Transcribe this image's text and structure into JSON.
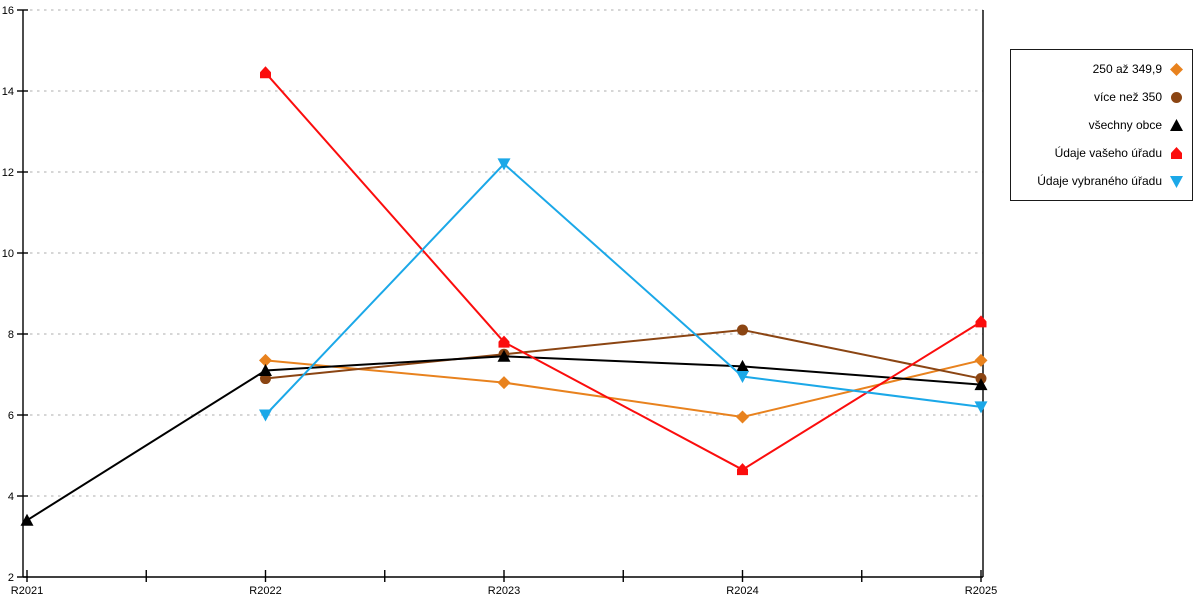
{
  "chart_data": {
    "type": "line",
    "title": "",
    "xlabel": "",
    "ylabel": "",
    "x": [
      "R2021",
      "R2022",
      "R2023",
      "R2024",
      "R2025"
    ],
    "ylim": [
      2,
      16
    ],
    "yticks": [
      2,
      4,
      6,
      8,
      10,
      12,
      14,
      16
    ],
    "grid": "horizontal-dashed",
    "grid_color": "#bdbdbd",
    "axis_color": "#000000",
    "legend_position": "outside-right",
    "series": [
      {
        "name": "250 až 349,9",
        "color": "#E8821E",
        "marker": "diamond",
        "values": [
          null,
          7.35,
          6.8,
          5.95,
          7.35
        ]
      },
      {
        "name": "více než 350",
        "color": "#8B4513",
        "marker": "circle",
        "values": [
          null,
          6.9,
          7.5,
          8.1,
          6.9
        ]
      },
      {
        "name": "všechny obce",
        "color": "#000000",
        "marker": "triangle-up",
        "values": [
          3.4,
          7.1,
          7.45,
          7.2,
          6.75
        ]
      },
      {
        "name": "Údaje vašeho úřadu",
        "color": "#FB0D0D",
        "marker": "pentagon-up",
        "values": [
          null,
          14.45,
          7.8,
          4.65,
          8.3
        ]
      },
      {
        "name": "Údaje vybraného úřadu",
        "color": "#1BA8E8",
        "marker": "triangle-down",
        "values": [
          null,
          6.0,
          12.2,
          6.95,
          6.2
        ]
      }
    ]
  }
}
